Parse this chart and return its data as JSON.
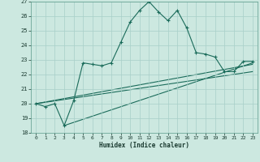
{
  "xlabel": "Humidex (Indice chaleur)",
  "background_color": "#cce8e0",
  "grid_color": "#a8cfc8",
  "line_color": "#1a6b5a",
  "xlim": [
    -0.5,
    23.5
  ],
  "ylim": [
    18,
    27
  ],
  "x_ticks": [
    0,
    1,
    2,
    3,
    4,
    5,
    6,
    7,
    8,
    9,
    10,
    11,
    12,
    13,
    14,
    15,
    16,
    17,
    18,
    19,
    20,
    21,
    22,
    23
  ],
  "y_ticks": [
    18,
    19,
    20,
    21,
    22,
    23,
    24,
    25,
    26,
    27
  ],
  "line1_x": [
    0,
    1,
    2,
    3,
    4,
    5,
    6,
    7,
    8,
    9,
    10,
    11,
    12,
    13,
    14,
    15,
    16,
    17,
    18,
    19,
    20,
    21,
    22,
    23
  ],
  "line1_y": [
    20.0,
    19.8,
    20.0,
    18.5,
    20.2,
    22.8,
    22.7,
    22.6,
    22.8,
    24.2,
    25.6,
    26.4,
    27.0,
    26.3,
    25.7,
    26.4,
    25.2,
    23.5,
    23.4,
    23.2,
    22.2,
    22.2,
    22.9,
    22.9
  ],
  "line2_x": [
    0,
    23
  ],
  "line2_y": [
    20.0,
    22.2
  ],
  "line3_x": [
    0,
    23
  ],
  "line3_y": [
    20.0,
    22.7
  ],
  "line4_x": [
    3,
    23
  ],
  "line4_y": [
    18.5,
    22.8
  ]
}
